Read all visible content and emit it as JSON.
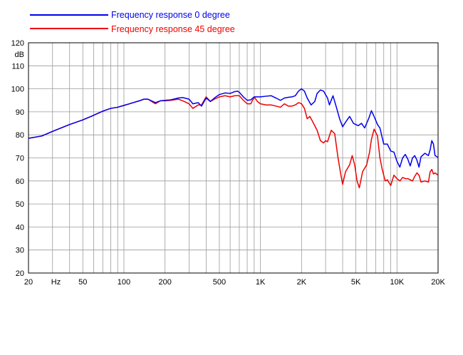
{
  "chart_data": {
    "type": "line",
    "title": "",
    "xlabel": "Hz",
    "ylabel": "dB",
    "x_scale": "log",
    "xlim": [
      20,
      20000
    ],
    "ylim": [
      20,
      120
    ],
    "grid": true,
    "legend_position": "top-left",
    "x_ticks": [
      {
        "value": 20,
        "label": "20"
      },
      {
        "value": 50,
        "label": "50"
      },
      {
        "value": 100,
        "label": "100"
      },
      {
        "value": 200,
        "label": "200"
      },
      {
        "value": 500,
        "label": "500"
      },
      {
        "value": 1000,
        "label": "1K"
      },
      {
        "value": 2000,
        "label": "2K"
      },
      {
        "value": 5000,
        "label": "5K"
      },
      {
        "value": 10000,
        "label": "10K"
      },
      {
        "value": 20000,
        "label": "20K"
      }
    ],
    "y_ticks": [
      20,
      30,
      40,
      50,
      60,
      70,
      80,
      90,
      100,
      110,
      120
    ],
    "series": [
      {
        "name": "Frequency response 0 degree",
        "color": "#0000ee",
        "points": [
          [
            20,
            78.5
          ],
          [
            25,
            79.5
          ],
          [
            30,
            81.5
          ],
          [
            40,
            84.5
          ],
          [
            50,
            86.5
          ],
          [
            60,
            88.5
          ],
          [
            70,
            90.3
          ],
          [
            80,
            91.5
          ],
          [
            90,
            92
          ],
          [
            100,
            92.8
          ],
          [
            110,
            93.5
          ],
          [
            120,
            94.2
          ],
          [
            130,
            94.8
          ],
          [
            140,
            95.5
          ],
          [
            150,
            95.5
          ],
          [
            170,
            94
          ],
          [
            185,
            94.8
          ],
          [
            200,
            95
          ],
          [
            220,
            95.2
          ],
          [
            250,
            96
          ],
          [
            270,
            96.2
          ],
          [
            300,
            95.5
          ],
          [
            320,
            93.5
          ],
          [
            350,
            94
          ],
          [
            370,
            92.5
          ],
          [
            400,
            96
          ],
          [
            430,
            94.5
          ],
          [
            460,
            96
          ],
          [
            500,
            97.5
          ],
          [
            550,
            98.2
          ],
          [
            600,
            98
          ],
          [
            650,
            98.8
          ],
          [
            680,
            99
          ],
          [
            700,
            98.5
          ],
          [
            750,
            96.5
          ],
          [
            800,
            95
          ],
          [
            850,
            95.2
          ],
          [
            900,
            96.5
          ],
          [
            1000,
            96.5
          ],
          [
            1100,
            96.8
          ],
          [
            1200,
            97
          ],
          [
            1300,
            96
          ],
          [
            1400,
            95
          ],
          [
            1500,
            96
          ],
          [
            1600,
            96.3
          ],
          [
            1700,
            96.5
          ],
          [
            1800,
            97
          ],
          [
            1900,
            99
          ],
          [
            2000,
            100
          ],
          [
            2100,
            99
          ],
          [
            2200,
            96
          ],
          [
            2350,
            93
          ],
          [
            2500,
            94.5
          ],
          [
            2600,
            98
          ],
          [
            2750,
            99.5
          ],
          [
            2900,
            99
          ],
          [
            3100,
            96
          ],
          [
            3200,
            93
          ],
          [
            3400,
            97
          ],
          [
            3600,
            92
          ],
          [
            3800,
            87
          ],
          [
            4000,
            83.5
          ],
          [
            4200,
            85.5
          ],
          [
            4500,
            88
          ],
          [
            4800,
            85
          ],
          [
            5200,
            84
          ],
          [
            5500,
            85
          ],
          [
            5800,
            83
          ],
          [
            6200,
            87
          ],
          [
            6500,
            90.5
          ],
          [
            6800,
            88
          ],
          [
            7200,
            84.5
          ],
          [
            7500,
            83
          ],
          [
            8000,
            76
          ],
          [
            8500,
            76
          ],
          [
            9000,
            73
          ],
          [
            9500,
            72.5
          ],
          [
            10000,
            68.5
          ],
          [
            10500,
            66
          ],
          [
            11000,
            70
          ],
          [
            11500,
            71.5
          ],
          [
            12000,
            69.5
          ],
          [
            12500,
            66.5
          ],
          [
            13000,
            70
          ],
          [
            13500,
            71
          ],
          [
            14000,
            69
          ],
          [
            14500,
            66
          ],
          [
            15000,
            70.5
          ],
          [
            16000,
            72
          ],
          [
            17000,
            71
          ],
          [
            17500,
            73.5
          ],
          [
            18000,
            77.5
          ],
          [
            18500,
            76
          ],
          [
            19000,
            71
          ],
          [
            20000,
            70.2
          ]
        ]
      },
      {
        "name": "Frequency response 45 degree",
        "color": "#ee0000",
        "points": [
          [
            20,
            78.5
          ],
          [
            25,
            79.5
          ],
          [
            30,
            81.5
          ],
          [
            40,
            84.5
          ],
          [
            50,
            86.5
          ],
          [
            60,
            88.5
          ],
          [
            70,
            90.3
          ],
          [
            80,
            91.5
          ],
          [
            90,
            92
          ],
          [
            100,
            92.8
          ],
          [
            110,
            93.5
          ],
          [
            120,
            94.2
          ],
          [
            130,
            94.8
          ],
          [
            140,
            95.5
          ],
          [
            150,
            95.5
          ],
          [
            170,
            93.5
          ],
          [
            185,
            94.8
          ],
          [
            200,
            94.8
          ],
          [
            220,
            95
          ],
          [
            250,
            95.5
          ],
          [
            270,
            94.8
          ],
          [
            300,
            93.5
          ],
          [
            320,
            91.5
          ],
          [
            350,
            93
          ],
          [
            370,
            93
          ],
          [
            400,
            96.5
          ],
          [
            430,
            94.5
          ],
          [
            460,
            95.5
          ],
          [
            500,
            96.5
          ],
          [
            550,
            97
          ],
          [
            600,
            96.5
          ],
          [
            650,
            97
          ],
          [
            700,
            97
          ],
          [
            750,
            95
          ],
          [
            800,
            93.5
          ],
          [
            850,
            93.5
          ],
          [
            900,
            96.5
          ],
          [
            950,
            94.5
          ],
          [
            1000,
            93.5
          ],
          [
            1100,
            93
          ],
          [
            1200,
            93
          ],
          [
            1300,
            92.5
          ],
          [
            1400,
            92
          ],
          [
            1500,
            93.5
          ],
          [
            1600,
            92.5
          ],
          [
            1700,
            92.5
          ],
          [
            1800,
            93
          ],
          [
            1900,
            94
          ],
          [
            2000,
            93.5
          ],
          [
            2100,
            91.5
          ],
          [
            2200,
            87
          ],
          [
            2300,
            88
          ],
          [
            2400,
            86
          ],
          [
            2600,
            82
          ],
          [
            2750,
            77.5
          ],
          [
            2900,
            76.5
          ],
          [
            3000,
            77.5
          ],
          [
            3100,
            77
          ],
          [
            3300,
            82
          ],
          [
            3500,
            80.5
          ],
          [
            3700,
            70
          ],
          [
            3900,
            62
          ],
          [
            4000,
            58.5
          ],
          [
            4200,
            64
          ],
          [
            4500,
            67
          ],
          [
            4700,
            71
          ],
          [
            4900,
            67
          ],
          [
            5100,
            60
          ],
          [
            5300,
            57
          ],
          [
            5600,
            64
          ],
          [
            6000,
            67
          ],
          [
            6300,
            72.5
          ],
          [
            6500,
            78
          ],
          [
            6800,
            82.5
          ],
          [
            7200,
            79.5
          ],
          [
            7500,
            70
          ],
          [
            7800,
            65
          ],
          [
            8200,
            60
          ],
          [
            8500,
            60.5
          ],
          [
            9000,
            58
          ],
          [
            9500,
            62.5
          ],
          [
            10000,
            61
          ],
          [
            10500,
            60
          ],
          [
            11000,
            61.5
          ],
          [
            11500,
            61
          ],
          [
            12000,
            61
          ],
          [
            12500,
            60.5
          ],
          [
            13000,
            60
          ],
          [
            13500,
            62
          ],
          [
            14000,
            63.5
          ],
          [
            14500,
            62.5
          ],
          [
            15000,
            59.5
          ],
          [
            16000,
            60
          ],
          [
            17000,
            59.5
          ],
          [
            17500,
            64
          ],
          [
            18000,
            65
          ],
          [
            18500,
            63
          ],
          [
            19000,
            63.5
          ],
          [
            20000,
            62.5
          ]
        ]
      }
    ]
  }
}
